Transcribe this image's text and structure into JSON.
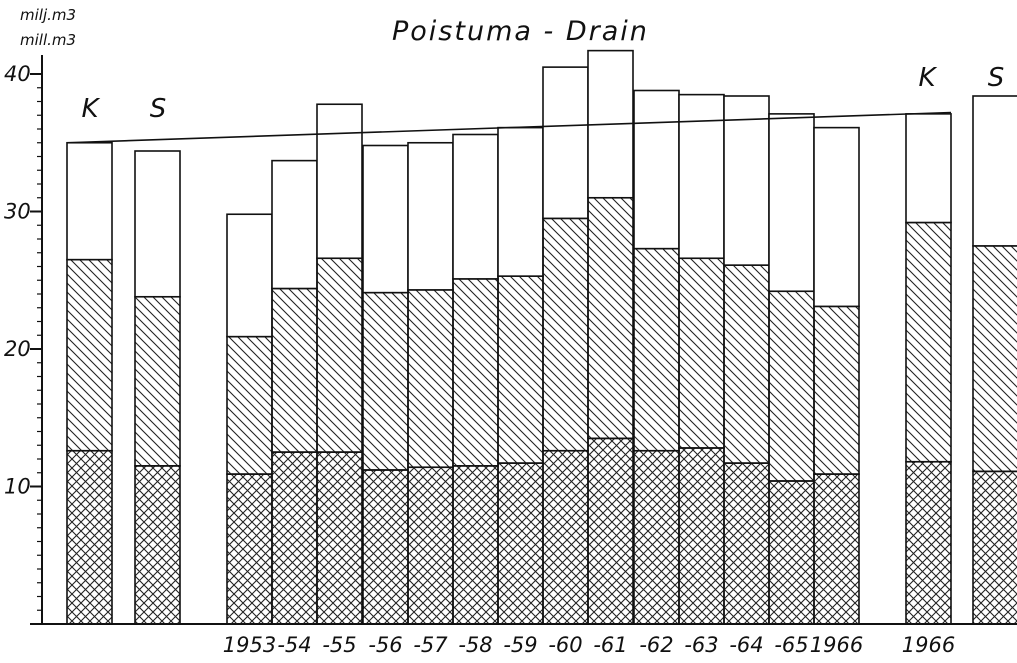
{
  "chart_data": {
    "type": "bar",
    "title": "Poistuma - Drain",
    "ylabel_lines": [
      "milj.m3",
      "mill.m3"
    ],
    "ylim": [
      0,
      40
    ],
    "yticks": [
      "10",
      "20",
      "30",
      "40"
    ],
    "stacked": true,
    "series_fills": [
      "cross-hatch",
      "diagonal-hatch",
      "blank"
    ],
    "group_labels": [
      "K",
      "S",
      "K",
      "S"
    ],
    "bars": [
      {
        "label": "",
        "group": "K",
        "bottom": 12.6,
        "middle": 26.5,
        "total": 35.0
      },
      {
        "label": "",
        "group": "S",
        "bottom": 11.5,
        "middle": 23.8,
        "total": 34.4
      },
      {
        "label": "1953",
        "bottom": 10.9,
        "middle": 20.9,
        "total": 29.8
      },
      {
        "label": "-54",
        "bottom": 12.5,
        "middle": 24.4,
        "total": 33.7
      },
      {
        "label": "-55",
        "bottom": 12.5,
        "middle": 26.6,
        "total": 37.8
      },
      {
        "label": "-56",
        "bottom": 11.2,
        "middle": 24.1,
        "total": 34.8
      },
      {
        "label": "-57",
        "bottom": 11.4,
        "middle": 24.3,
        "total": 35.0
      },
      {
        "label": "-58",
        "bottom": 11.5,
        "middle": 25.1,
        "total": 35.6
      },
      {
        "label": "-59",
        "bottom": 11.7,
        "middle": 25.3,
        "total": 36.1
      },
      {
        "label": "-60",
        "bottom": 12.6,
        "middle": 29.5,
        "total": 40.5
      },
      {
        "label": "-61",
        "bottom": 13.5,
        "middle": 31.0,
        "total": 41.7
      },
      {
        "label": "-62",
        "bottom": 12.6,
        "middle": 27.3,
        "total": 38.8
      },
      {
        "label": "-63",
        "bottom": 12.8,
        "middle": 26.6,
        "total": 38.5
      },
      {
        "label": "-64",
        "bottom": 11.7,
        "middle": 26.1,
        "total": 38.4
      },
      {
        "label": "-65",
        "bottom": 10.4,
        "middle": 24.2,
        "total": 37.1
      },
      {
        "label": "1966",
        "bottom": 10.9,
        "middle": 23.1,
        "total": 36.1
      },
      {
        "label": "1966",
        "group": "K",
        "bottom": 11.8,
        "middle": 29.2,
        "total": 37.1
      },
      {
        "label": "",
        "group": "S",
        "bottom": 11.1,
        "middle": 27.5,
        "total": 38.4
      }
    ],
    "trend_line": {
      "from_total": 35.0,
      "to_total": 37.2
    }
  }
}
